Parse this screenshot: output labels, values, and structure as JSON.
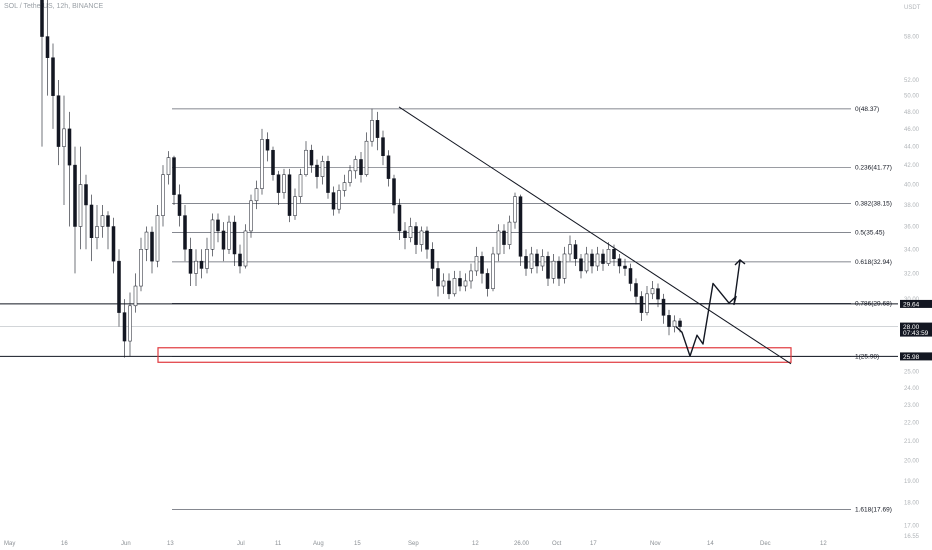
{
  "header": {
    "symbol_title": "SOL / TetherUS, 12h, BINANCE"
  },
  "chart_data": {
    "type": "candlestick",
    "title": "SOL / TetherUS, 12h, BINANCE",
    "y_unit": "USDT",
    "y_scale": "log",
    "ylim": [
      16.55,
      62.0
    ],
    "y_ticks": [
      "58.00",
      "52.00",
      "50.00",
      "48.00",
      "46.00",
      "44.00",
      "42.00",
      "40.00",
      "38.00",
      "36.00",
      "34.00",
      "32.00",
      "30.00",
      "28.00",
      "26.00",
      "25.00",
      "24.00",
      "23.00",
      "22.00",
      "21.00",
      "20.00",
      "19.00",
      "18.00",
      "17.00",
      "16.55"
    ],
    "x_ticks": [
      "May",
      "16",
      "Jun",
      "13",
      "Jul",
      "11",
      "Aug",
      "15",
      "Sep",
      "12",
      "26.00",
      "Oct",
      "17",
      "Nov",
      "14",
      "Dec",
      "12"
    ],
    "fib_levels": [
      {
        "ratio_label": "0(48.37)",
        "price": 48.37
      },
      {
        "ratio_label": "0.236(41.77)",
        "price": 41.77
      },
      {
        "ratio_label": "0.382(38.15)",
        "price": 38.15
      },
      {
        "ratio_label": "0.5(35.45)",
        "price": 35.45
      },
      {
        "ratio_label": "0.618(32.94)",
        "price": 32.94
      },
      {
        "ratio_label": "0.786(29.68)",
        "price": 29.68
      },
      {
        "ratio_label": "1(25.98)",
        "price": 25.98
      },
      {
        "ratio_label": "1.618(17.69)",
        "price": 17.69
      }
    ],
    "price_tags": [
      {
        "label": "29.64",
        "price": 29.64,
        "color": "#131722"
      },
      {
        "label": "28.00",
        "sub": "07:43:59",
        "price": 28.0,
        "color": "#131722"
      },
      {
        "label": "25.98",
        "price": 25.98,
        "color": "#131722"
      }
    ],
    "horizontal_lines": [
      29.64,
      25.98
    ],
    "current_price": 28.0,
    "support_zone": {
      "low": 25.6,
      "high": 26.55,
      "color": "#e0393e"
    },
    "trendline": {
      "from_price": 48.6,
      "to_price": 25.5
    },
    "projection_path": [
      28.0,
      27.6,
      26.0,
      27.4,
      26.8,
      31.2,
      29.7,
      30.2,
      29.6,
      33.1
    ],
    "candles": [
      [
        72,
        58,
        78,
        44
      ],
      [
        58,
        55,
        66,
        50
      ],
      [
        55,
        50,
        57,
        46
      ],
      [
        50,
        44,
        52,
        42
      ],
      [
        44,
        46,
        50,
        38
      ],
      [
        46,
        42,
        48,
        36
      ],
      [
        42,
        36,
        44,
        32
      ],
      [
        36,
        40,
        44,
        34
      ],
      [
        40,
        38,
        41,
        34
      ],
      [
        38,
        35,
        39,
        33
      ],
      [
        35,
        36,
        38,
        34
      ],
      [
        36,
        37,
        38,
        35
      ],
      [
        37,
        36,
        37.4,
        34
      ],
      [
        36,
        33,
        36.8,
        32
      ],
      [
        33,
        29,
        34,
        28
      ],
      [
        29,
        27,
        30,
        25.9
      ],
      [
        27,
        29.5,
        30.5,
        26
      ],
      [
        29.5,
        31,
        32,
        29
      ],
      [
        31,
        34,
        35,
        30.6
      ],
      [
        34,
        35.5,
        36,
        33
      ],
      [
        35.5,
        33,
        36,
        32
      ],
      [
        33,
        37,
        38,
        32.5
      ],
      [
        37,
        41,
        42,
        36
      ],
      [
        41,
        42.8,
        43.5,
        40
      ],
      [
        42.8,
        39,
        43,
        38
      ],
      [
        39,
        37,
        40,
        36
      ],
      [
        37,
        34,
        38,
        33
      ],
      [
        34,
        32,
        35,
        31
      ],
      [
        32,
        33,
        34,
        31
      ],
      [
        33,
        32.4,
        34,
        31.6
      ],
      [
        32.4,
        34,
        35,
        32
      ],
      [
        34,
        36.6,
        37.2,
        33.4
      ],
      [
        36.6,
        35.6,
        37.2,
        34.6
      ],
      [
        35.6,
        34,
        36.4,
        33
      ],
      [
        34,
        36.4,
        37,
        33.6
      ],
      [
        36.4,
        33.6,
        37,
        32.6
      ],
      [
        33.6,
        32.6,
        34.4,
        32
      ],
      [
        32.6,
        35.6,
        36.2,
        32.4
      ],
      [
        35.6,
        38.4,
        39,
        35
      ],
      [
        38.4,
        39.6,
        40.4,
        37.6
      ],
      [
        39.6,
        44.8,
        46,
        39
      ],
      [
        44.8,
        43.6,
        45.6,
        42.4
      ],
      [
        43.6,
        41,
        44,
        40.4
      ],
      [
        41,
        39.2,
        41.4,
        38
      ],
      [
        39.2,
        41,
        41.6,
        38.6
      ],
      [
        41,
        37,
        41.6,
        36.4
      ],
      [
        37,
        38.8,
        39.6,
        36.6
      ],
      [
        38.8,
        41,
        41.6,
        38.2
      ],
      [
        41,
        43.6,
        44.6,
        40.8
      ],
      [
        43.6,
        42,
        44.2,
        41.2
      ],
      [
        42,
        40.8,
        42.6,
        39.6
      ],
      [
        40.8,
        42.4,
        43,
        40
      ],
      [
        42.4,
        39.2,
        43,
        38.6
      ],
      [
        39.2,
        37.6,
        39.8,
        37
      ],
      [
        37.6,
        39.4,
        40,
        37.2
      ],
      [
        39.4,
        40.2,
        41,
        38.8
      ],
      [
        40.2,
        41.4,
        42,
        39.8
      ],
      [
        41.4,
        42.6,
        43,
        40.6
      ],
      [
        42.6,
        41,
        43.4,
        40.2
      ],
      [
        41,
        44.6,
        45.6,
        40.8
      ],
      [
        44.6,
        47,
        48.4,
        44
      ],
      [
        47,
        45,
        48,
        43.6
      ],
      [
        45,
        43,
        45.8,
        42
      ],
      [
        43,
        40.6,
        43.6,
        39.8
      ],
      [
        40.6,
        38,
        41,
        37.2
      ],
      [
        38,
        35.6,
        38.6,
        34.8
      ],
      [
        35.6,
        35,
        36.4,
        34
      ],
      [
        35,
        36,
        36.8,
        34.6
      ],
      [
        36,
        34.4,
        36.4,
        33.6
      ],
      [
        34.4,
        35.6,
        36,
        33.8
      ],
      [
        35.6,
        34,
        36,
        33.2
      ],
      [
        34,
        32.4,
        34.6,
        31.4
      ],
      [
        32.4,
        31,
        33,
        30.2
      ],
      [
        31,
        31.4,
        32,
        30.4
      ],
      [
        31.4,
        30.4,
        32,
        30
      ],
      [
        30.4,
        31.6,
        32.2,
        30.2
      ],
      [
        31.6,
        31,
        32.2,
        30.6
      ],
      [
        31,
        31.4,
        32,
        30.6
      ],
      [
        31.4,
        32.2,
        32.8,
        30.8
      ],
      [
        32.2,
        33.4,
        34.2,
        31.8
      ],
      [
        33.4,
        32,
        33.8,
        31.2
      ],
      [
        32,
        30.8,
        32.4,
        30.2
      ],
      [
        30.8,
        33.6,
        34.2,
        30.6
      ],
      [
        33.6,
        35.6,
        36.2,
        33
      ],
      [
        35.6,
        34.4,
        36.2,
        33.6
      ],
      [
        34.4,
        36.4,
        37,
        34
      ],
      [
        36.4,
        38.8,
        39.2,
        35.8
      ],
      [
        38.8,
        33.4,
        39,
        32.6
      ],
      [
        33.4,
        32.4,
        34,
        31.8
      ],
      [
        32.4,
        33.6,
        34.2,
        32
      ],
      [
        33.6,
        32.6,
        34,
        32
      ],
      [
        32.6,
        33.4,
        34,
        32.2
      ],
      [
        33.4,
        31.6,
        33.8,
        31
      ],
      [
        31.6,
        33,
        33.6,
        31.2
      ],
      [
        33,
        31.6,
        33.4,
        31
      ],
      [
        31.6,
        33.6,
        34.2,
        31.2
      ],
      [
        33.6,
        34.4,
        35.2,
        33
      ],
      [
        34.4,
        33.2,
        34.8,
        32.6
      ],
      [
        33.2,
        32.2,
        33.6,
        31.6
      ],
      [
        32.2,
        33.6,
        34.2,
        32
      ],
      [
        33.6,
        32.6,
        34,
        32
      ],
      [
        32.6,
        33.6,
        34.2,
        32.2
      ],
      [
        33.6,
        32.8,
        34,
        32.2
      ],
      [
        32.8,
        34,
        34.6,
        32.6
      ],
      [
        34,
        33.2,
        34.4,
        32.6
      ],
      [
        33.2,
        32.6,
        33.6,
        32
      ],
      [
        32.6,
        32.4,
        33.2,
        31.8
      ],
      [
        32.4,
        31.2,
        32.8,
        30.6
      ],
      [
        31.2,
        30.2,
        31.6,
        29.6
      ],
      [
        30.2,
        29,
        30.6,
        28.4
      ],
      [
        29,
        30.4,
        31,
        28.8
      ],
      [
        30.4,
        30.8,
        31.4,
        30
      ],
      [
        30.8,
        30,
        31.2,
        29.4
      ],
      [
        30,
        28.8,
        30.4,
        28.2
      ],
      [
        28.8,
        28,
        29.2,
        27.4
      ],
      [
        28,
        28.4,
        28.8,
        27.6
      ],
      [
        28.4,
        28,
        28.6,
        27.6
      ]
    ]
  }
}
